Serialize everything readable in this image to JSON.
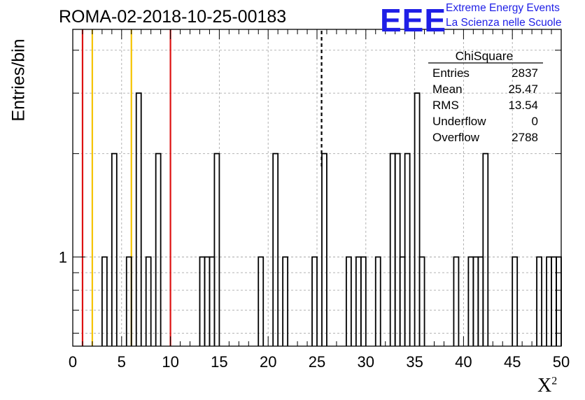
{
  "title": "ROMA-02-2018-10-25-00183",
  "logo": {
    "text": "EEE",
    "line1": "Extreme Energy Events",
    "line2": "La Scienza nelle Scuole",
    "color": "#1f1fe6"
  },
  "chart_data": {
    "type": "bar",
    "subtype": "histogram",
    "xlabel": "X",
    "xlabel_sup": "2",
    "ylabel": "Entries/bin",
    "xlim": [
      0,
      50
    ],
    "ylim": [
      0.55,
      4.6
    ],
    "yscale": "log",
    "grid": true,
    "bin_width": 0.5,
    "x_ticks": [
      "0",
      "5",
      "10",
      "15",
      "20",
      "25",
      "30",
      "35",
      "40",
      "45",
      "50"
    ],
    "y_ticks": [
      "1"
    ],
    "bins": [
      {
        "x": 3.0,
        "y": 1
      },
      {
        "x": 4.0,
        "y": 2
      },
      {
        "x": 5.5,
        "y": 1
      },
      {
        "x": 6.5,
        "y": 3
      },
      {
        "x": 7.5,
        "y": 1
      },
      {
        "x": 8.5,
        "y": 2
      },
      {
        "x": 13.0,
        "y": 1
      },
      {
        "x": 13.5,
        "y": 1
      },
      {
        "x": 14.0,
        "y": 1
      },
      {
        "x": 14.5,
        "y": 2
      },
      {
        "x": 19.0,
        "y": 1
      },
      {
        "x": 20.5,
        "y": 2
      },
      {
        "x": 21.5,
        "y": 1
      },
      {
        "x": 24.5,
        "y": 1
      },
      {
        "x": 25.5,
        "y": 2
      },
      {
        "x": 28.0,
        "y": 1
      },
      {
        "x": 29.0,
        "y": 1
      },
      {
        "x": 29.5,
        "y": 1
      },
      {
        "x": 31.0,
        "y": 1
      },
      {
        "x": 32.5,
        "y": 2
      },
      {
        "x": 33.0,
        "y": 2
      },
      {
        "x": 33.5,
        "y": 1
      },
      {
        "x": 34.0,
        "y": 2
      },
      {
        "x": 35.0,
        "y": 3
      },
      {
        "x": 35.5,
        "y": 1
      },
      {
        "x": 39.0,
        "y": 1
      },
      {
        "x": 40.5,
        "y": 1
      },
      {
        "x": 41.0,
        "y": 1
      },
      {
        "x": 41.5,
        "y": 1
      },
      {
        "x": 42.0,
        "y": 2
      },
      {
        "x": 45.0,
        "y": 1
      },
      {
        "x": 47.5,
        "y": 1
      },
      {
        "x": 48.5,
        "y": 1
      },
      {
        "x": 49.0,
        "y": 1
      },
      {
        "x": 49.5,
        "y": 1
      }
    ],
    "reference_lines": [
      {
        "x": 1.0,
        "color": "#dd1111",
        "style": "solid"
      },
      {
        "x": 2.0,
        "color": "#f5c400",
        "style": "solid"
      },
      {
        "x": 6.0,
        "color": "#f5c400",
        "style": "solid"
      },
      {
        "x": 10.0,
        "color": "#dd1111",
        "style": "solid"
      },
      {
        "x": 25.47,
        "color": "#000000",
        "style": "dashed"
      }
    ],
    "stats_box": {
      "name": "ChiSquare",
      "rows": [
        {
          "label": "Entries",
          "value": "2837"
        },
        {
          "label": "Mean",
          "value": "25.47"
        },
        {
          "label": "RMS",
          "value": "13.54"
        },
        {
          "label": "Underflow",
          "value": "0"
        },
        {
          "label": "Overflow",
          "value": "2788"
        }
      ]
    }
  }
}
